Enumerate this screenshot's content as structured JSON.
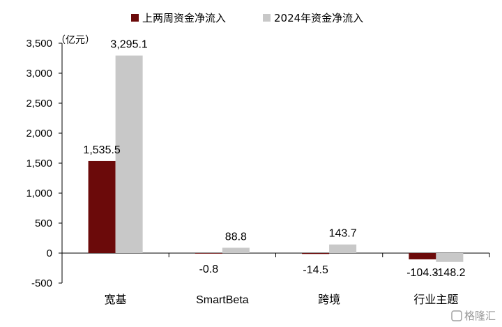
{
  "chart_data": {
    "type": "bar",
    "categories": [
      "宽基",
      "SmartBeta",
      "跨境",
      "行业主题"
    ],
    "series": [
      {
        "name": "上两周资金净流入",
        "color": "#6b0a0a",
        "values": [
          1535.5,
          -0.8,
          -14.5,
          -104.3
        ]
      },
      {
        "name": "2024年资金净流入",
        "color": "#c8c8c8",
        "values": [
          3295.1,
          88.8,
          143.7,
          -148.2
        ]
      }
    ],
    "data_labels": [
      [
        "1,535.5",
        "-0.8",
        "-14.5",
        "-104.3"
      ],
      [
        "3,295.1",
        "88.8",
        "143.7",
        "-148.2"
      ]
    ],
    "ylim": [
      -500,
      3500
    ],
    "yticks": [
      -500,
      0,
      500,
      1000,
      1500,
      2000,
      2500,
      3000,
      3500
    ],
    "ytick_labels": [
      "-500",
      "0",
      "500",
      "1,000",
      "1,500",
      "2,000",
      "2,500",
      "3,000",
      "3,500"
    ],
    "ylabel": "（亿元）",
    "legend_position": "top-center",
    "grid": false
  },
  "watermark": {
    "text": "格隆汇",
    "icon": "gelonghui-logo-icon"
  }
}
